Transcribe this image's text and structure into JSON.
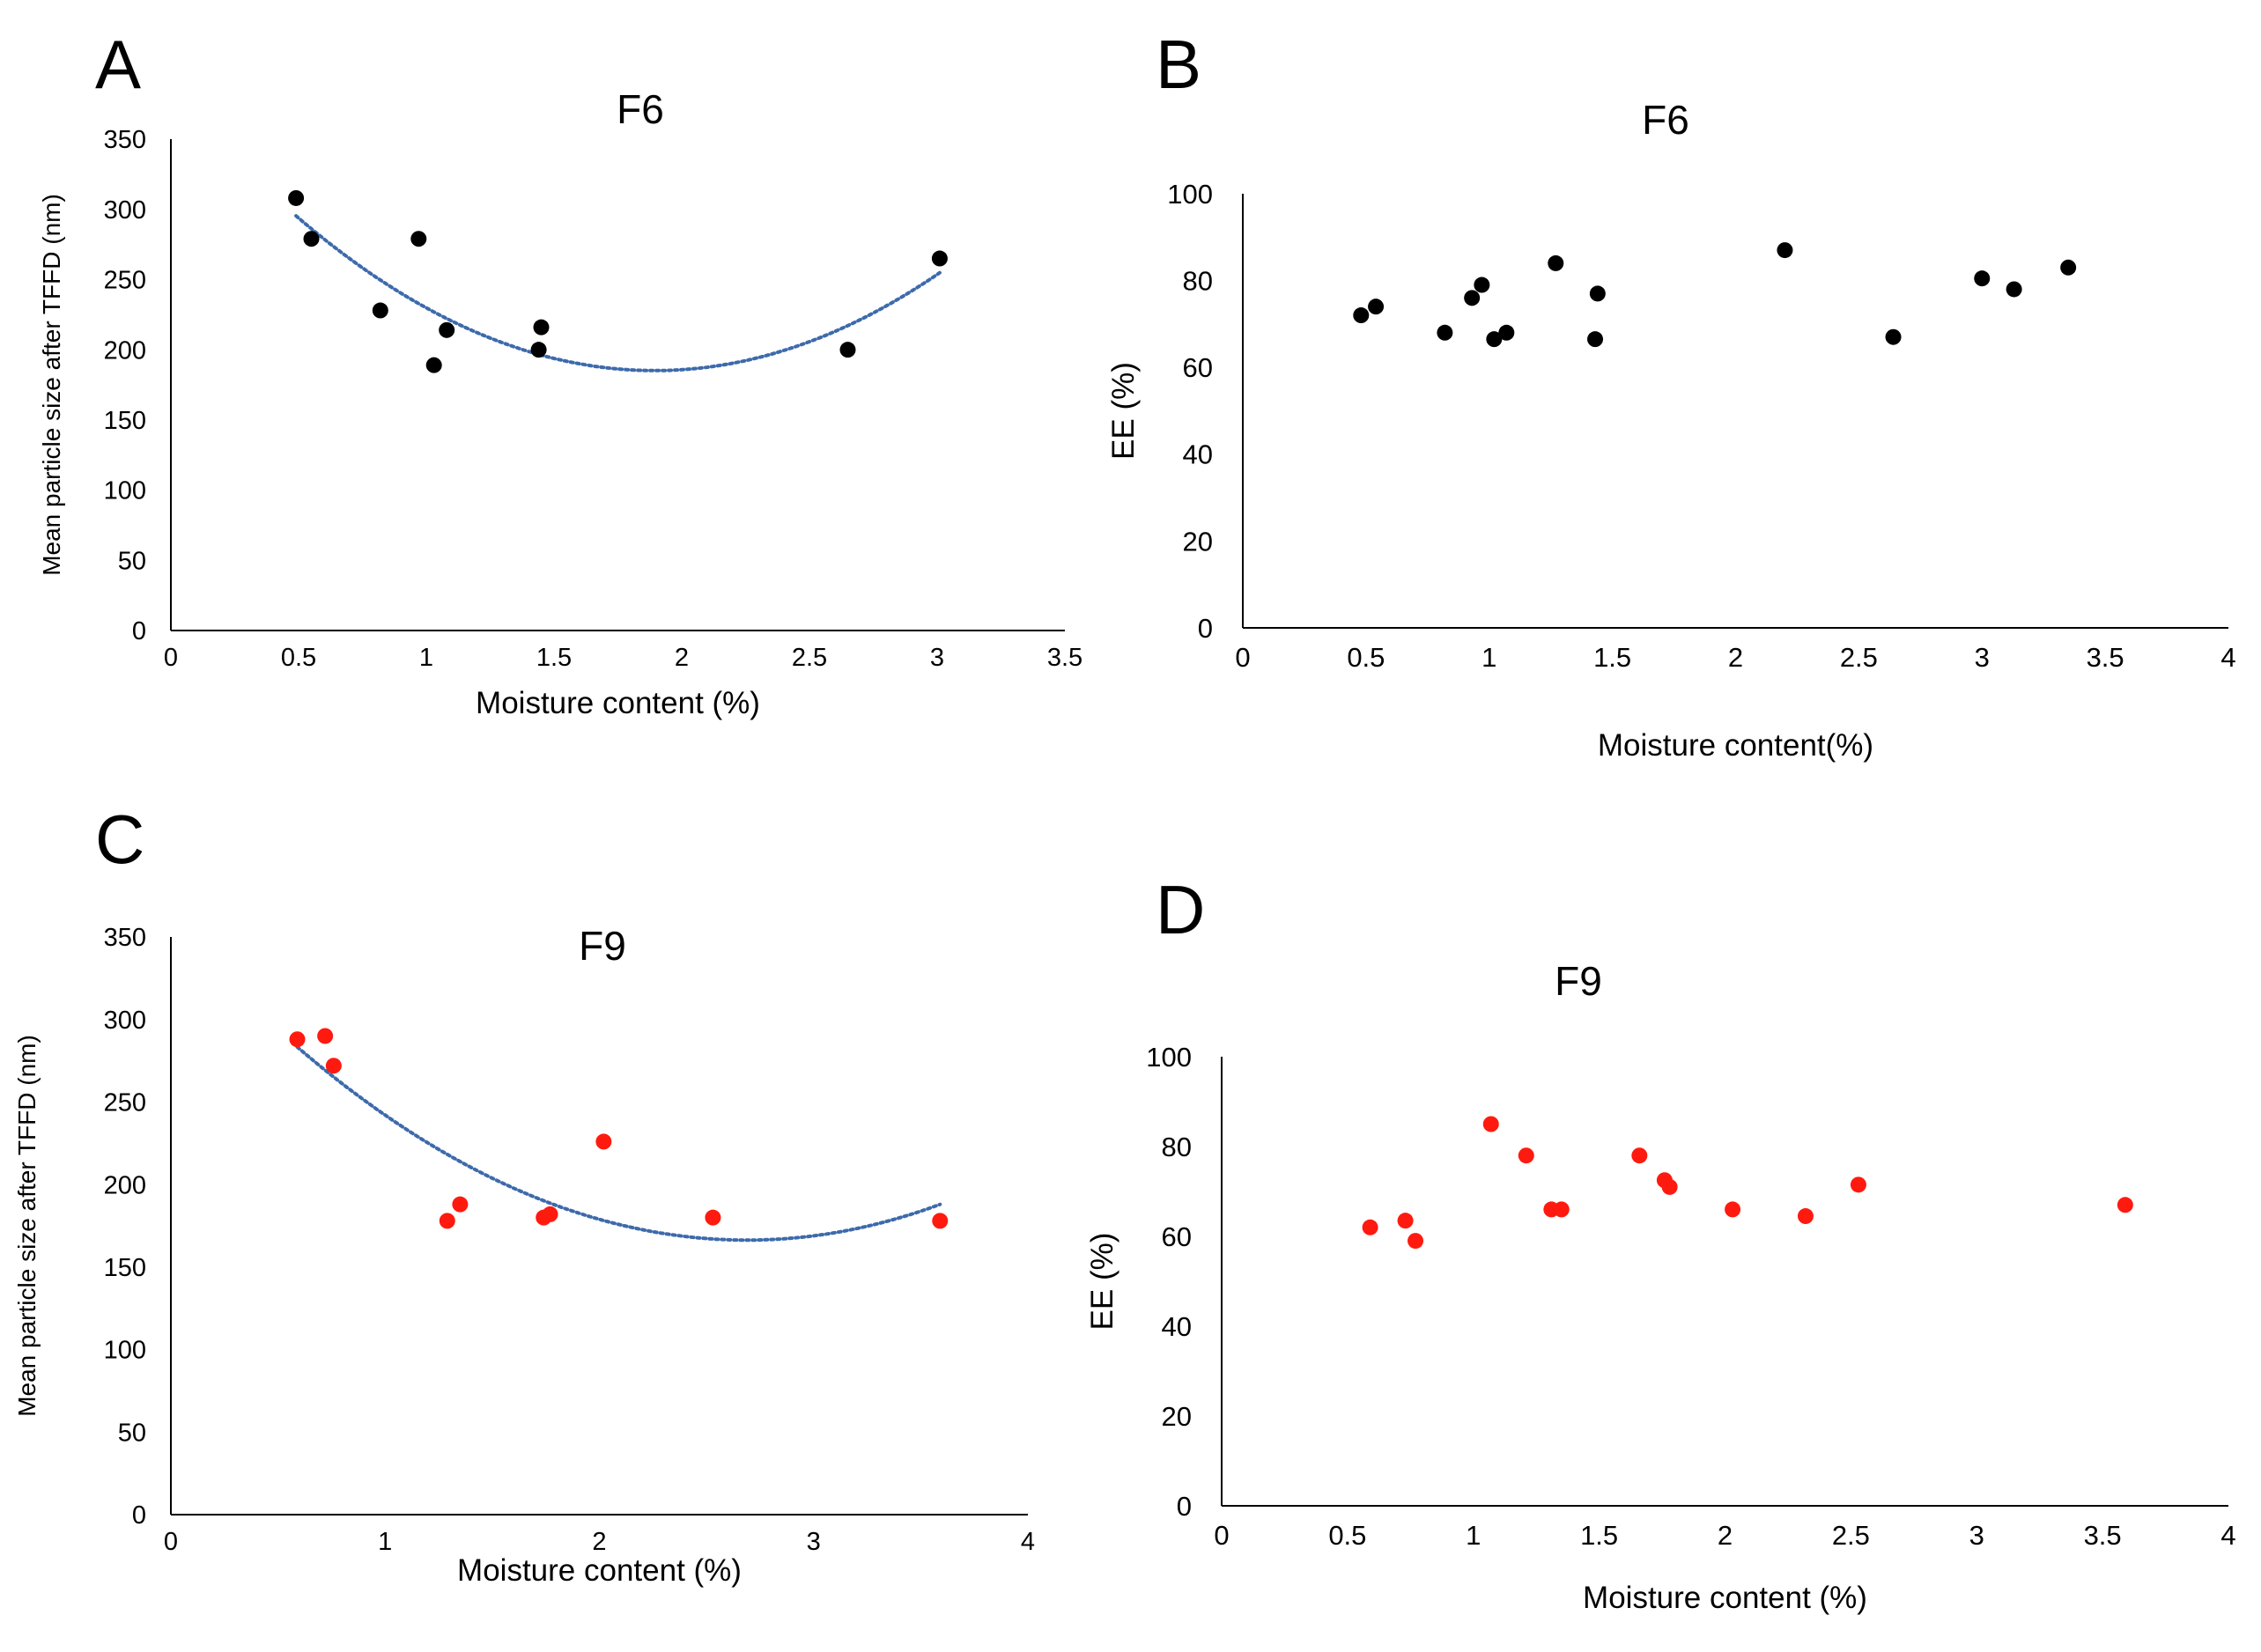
{
  "colors": {
    "black_points": "#000000",
    "red_points": "#ff1a0f",
    "trendline": "#3d6aab",
    "axis": "#000000"
  },
  "chart_data": [
    {
      "panel": "A",
      "type": "scatter",
      "title": "F6",
      "xlabel": "Moisture content (%)",
      "ylabel": "Mean particle size  after TFFD (nm)",
      "xlim": [
        0,
        3.5
      ],
      "ylim": [
        0,
        350
      ],
      "xticks": [
        "0",
        "0.5",
        "1",
        "1.5",
        "2",
        "2.5",
        "3",
        "3.5"
      ],
      "yticks": [
        "0",
        "50",
        "100",
        "150",
        "200",
        "250",
        "300",
        "350"
      ],
      "grid": false,
      "legend": "none",
      "trendline": "polynomial-2",
      "point_color": "black",
      "points": [
        [
          0.49,
          308
        ],
        [
          0.55,
          279
        ],
        [
          0.82,
          228
        ],
        [
          0.97,
          279
        ],
        [
          1.03,
          189
        ],
        [
          1.08,
          214
        ],
        [
          1.44,
          200
        ],
        [
          1.45,
          216
        ],
        [
          2.65,
          200
        ],
        [
          3.01,
          265
        ]
      ]
    },
    {
      "panel": "B",
      "type": "scatter",
      "title": "F6",
      "xlabel": "Moisture content(%)",
      "ylabel": "EE (%)",
      "xlim": [
        0,
        4
      ],
      "ylim": [
        0,
        100
      ],
      "xticks": [
        "0",
        "0.5",
        "1",
        "1.5",
        "2",
        "2.5",
        "3",
        "3.5",
        "4"
      ],
      "yticks": [
        "0",
        "20",
        "40",
        "60",
        "80",
        "100"
      ],
      "grid": false,
      "legend": "none",
      "point_color": "black",
      "points": [
        [
          0.48,
          72
        ],
        [
          0.54,
          74
        ],
        [
          0.82,
          68
        ],
        [
          0.93,
          76
        ],
        [
          0.97,
          79
        ],
        [
          1.02,
          66.5
        ],
        [
          1.07,
          68
        ],
        [
          1.27,
          84
        ],
        [
          1.43,
          66.5
        ],
        [
          1.44,
          77
        ],
        [
          2.2,
          87
        ],
        [
          2.64,
          67
        ],
        [
          3.0,
          80.5
        ],
        [
          3.13,
          78
        ],
        [
          3.35,
          83
        ]
      ]
    },
    {
      "panel": "C",
      "type": "scatter",
      "title": "F9",
      "xlabel": "Moisture content (%)",
      "ylabel": "Mean particle size  after TFFD (nm)",
      "xlim": [
        0,
        4
      ],
      "ylim": [
        0,
        350
      ],
      "xticks": [
        "0",
        "1",
        "2",
        "3",
        "4"
      ],
      "yticks": [
        "0",
        "50",
        "100",
        "150",
        "200",
        "250",
        "300",
        "350"
      ],
      "grid": false,
      "legend": "none",
      "trendline": "polynomial-2",
      "point_color": "red",
      "points": [
        [
          0.59,
          288
        ],
        [
          0.72,
          290
        ],
        [
          0.76,
          272
        ],
        [
          1.29,
          178
        ],
        [
          1.35,
          188
        ],
        [
          1.74,
          180
        ],
        [
          1.77,
          182
        ],
        [
          2.02,
          226
        ],
        [
          2.53,
          180
        ],
        [
          3.59,
          178
        ]
      ]
    },
    {
      "panel": "D",
      "type": "scatter",
      "title": "F9",
      "xlabel": "Moisture content (%)",
      "ylabel": "EE (%)",
      "xlim": [
        0,
        4
      ],
      "ylim": [
        0,
        100
      ],
      "xticks": [
        "0",
        "0.5",
        "1",
        "1.5",
        "2",
        "2.5",
        "3",
        "3.5",
        "4"
      ],
      "yticks": [
        "0",
        "20",
        "40",
        "60",
        "80",
        "100"
      ],
      "grid": false,
      "legend": "none",
      "point_color": "red",
      "points": [
        [
          0.59,
          62
        ],
        [
          0.73,
          63.5
        ],
        [
          0.77,
          59
        ],
        [
          1.07,
          85
        ],
        [
          1.21,
          78
        ],
        [
          1.31,
          66
        ],
        [
          1.35,
          66
        ],
        [
          1.66,
          78
        ],
        [
          1.76,
          72.5
        ],
        [
          1.78,
          71
        ],
        [
          2.03,
          66
        ],
        [
          2.32,
          64.5
        ],
        [
          2.53,
          71.5
        ],
        [
          3.59,
          67
        ]
      ]
    }
  ]
}
